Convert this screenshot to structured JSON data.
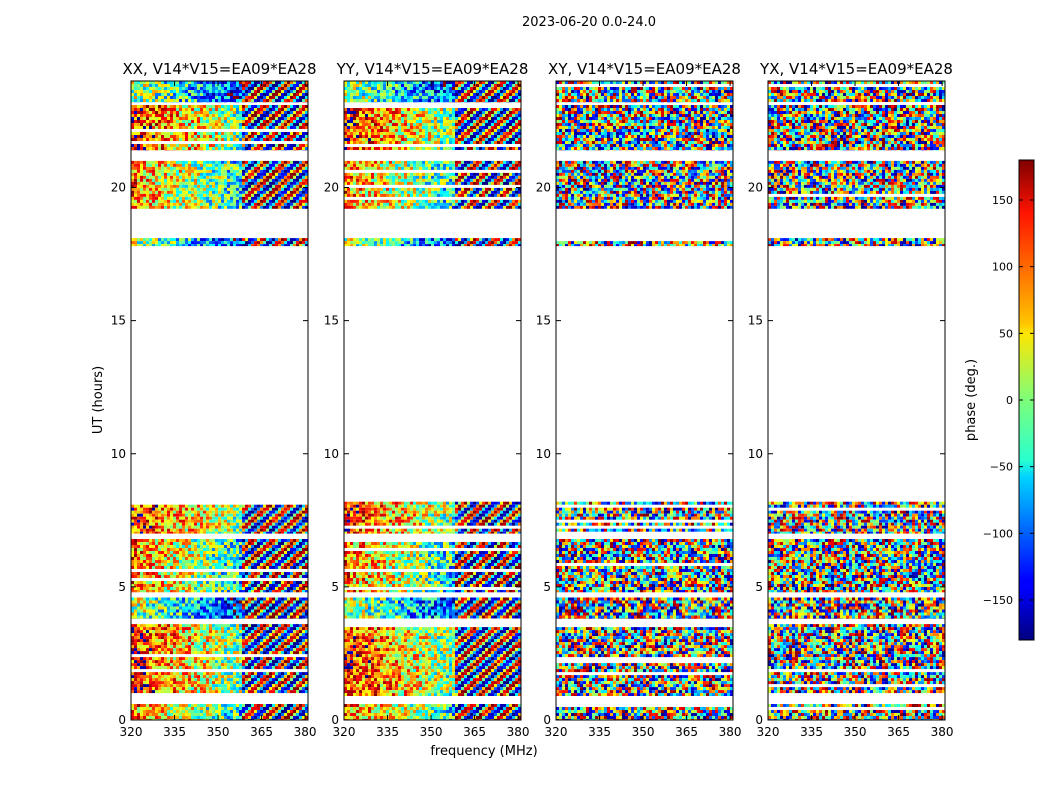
{
  "figure": {
    "suptitle": "2023-06-20 0.0-24.0",
    "ylabel": "UT (hours)",
    "xlabel": "frequency (MHz)",
    "colorbar": {
      "label": "phase (deg.)",
      "range": [
        -180,
        180
      ],
      "ticks": [
        150,
        100,
        50,
        0,
        -50,
        -100,
        -150
      ],
      "tick_labels": [
        "150",
        "100",
        "50",
        "0",
        "−50",
        "−100",
        "−150"
      ],
      "colormap": "jet"
    }
  },
  "chart_data": [
    {
      "type": "heatmap",
      "title": "XX, V14*V15=EA09*EA28",
      "xlim": [
        320,
        381
      ],
      "ylim": [
        0,
        24
      ],
      "xticks": [
        320,
        335,
        350,
        365,
        380
      ],
      "xtick_labels": [
        "320",
        "335",
        "350",
        "365",
        "380"
      ],
      "yticks": [
        0,
        5,
        10,
        15,
        20
      ],
      "ytick_labels": [
        "0",
        "5",
        "10",
        "15",
        "20"
      ],
      "show_yticklabels": true,
      "gradient_mode": "warm-smooth",
      "data_time_ranges_hours": [
        [
          0.0,
          0.6
        ],
        [
          0.9,
          3.6
        ],
        [
          3.8,
          4.6
        ],
        [
          4.8,
          6.8
        ],
        [
          7.0,
          8.2
        ],
        [
          17.8,
          18.1
        ],
        [
          19.2,
          21.0
        ],
        [
          21.4,
          23.1
        ],
        [
          23.2,
          24.0
        ]
      ]
    },
    {
      "type": "heatmap",
      "title": "YY, V14*V15=EA09*EA28",
      "xlim": [
        320,
        381
      ],
      "ylim": [
        0,
        24
      ],
      "xticks": [
        320,
        335,
        350,
        365,
        380
      ],
      "xtick_labels": [
        "320",
        "335",
        "350",
        "365",
        "380"
      ],
      "yticks": [
        0,
        5,
        10,
        15,
        20
      ],
      "ytick_labels": [
        "0",
        "5",
        "10",
        "15",
        "20"
      ],
      "show_yticklabels": true,
      "gradient_mode": "warm-smooth",
      "data_time_ranges_hours": [
        [
          0.0,
          0.6
        ],
        [
          0.9,
          3.6
        ],
        [
          3.8,
          4.6
        ],
        [
          4.8,
          6.8
        ],
        [
          7.0,
          8.2
        ],
        [
          17.8,
          18.1
        ],
        [
          19.2,
          21.0
        ],
        [
          21.4,
          23.1
        ],
        [
          23.2,
          24.0
        ]
      ]
    },
    {
      "type": "heatmap",
      "title": "XY, V14*V15=EA09*EA28",
      "xlim": [
        320,
        381
      ],
      "ylim": [
        0,
        24
      ],
      "xticks": [
        320,
        335,
        350,
        365,
        380
      ],
      "xtick_labels": [
        "320",
        "335",
        "350",
        "365",
        "380"
      ],
      "yticks": [
        0,
        5,
        10,
        15,
        20
      ],
      "ytick_labels": [
        "0",
        "5",
        "10",
        "15",
        "20"
      ],
      "show_yticklabels": true,
      "gradient_mode": "noise",
      "data_time_ranges_hours": [
        [
          0.0,
          0.6
        ],
        [
          0.9,
          3.6
        ],
        [
          3.8,
          4.6
        ],
        [
          4.8,
          6.8
        ],
        [
          7.0,
          8.2
        ],
        [
          17.8,
          18.1
        ],
        [
          19.2,
          21.0
        ],
        [
          21.4,
          23.1
        ],
        [
          23.2,
          24.0
        ]
      ]
    },
    {
      "type": "heatmap",
      "title": "YX, V14*V15=EA09*EA28",
      "xlim": [
        320,
        381
      ],
      "ylim": [
        0,
        24
      ],
      "xticks": [
        320,
        335,
        350,
        365,
        380
      ],
      "xtick_labels": [
        "320",
        "335",
        "350",
        "365",
        "380"
      ],
      "yticks": [
        0,
        5,
        10,
        15,
        20
      ],
      "ytick_labels": [
        "0",
        "5",
        "10",
        "15",
        "20"
      ],
      "show_yticklabels": true,
      "gradient_mode": "noise",
      "data_time_ranges_hours": [
        [
          0.0,
          0.6
        ],
        [
          0.9,
          3.6
        ],
        [
          3.8,
          4.6
        ],
        [
          4.8,
          6.8
        ],
        [
          7.0,
          8.2
        ],
        [
          17.8,
          18.1
        ],
        [
          19.2,
          21.0
        ],
        [
          21.4,
          23.1
        ],
        [
          23.2,
          24.0
        ]
      ]
    }
  ]
}
